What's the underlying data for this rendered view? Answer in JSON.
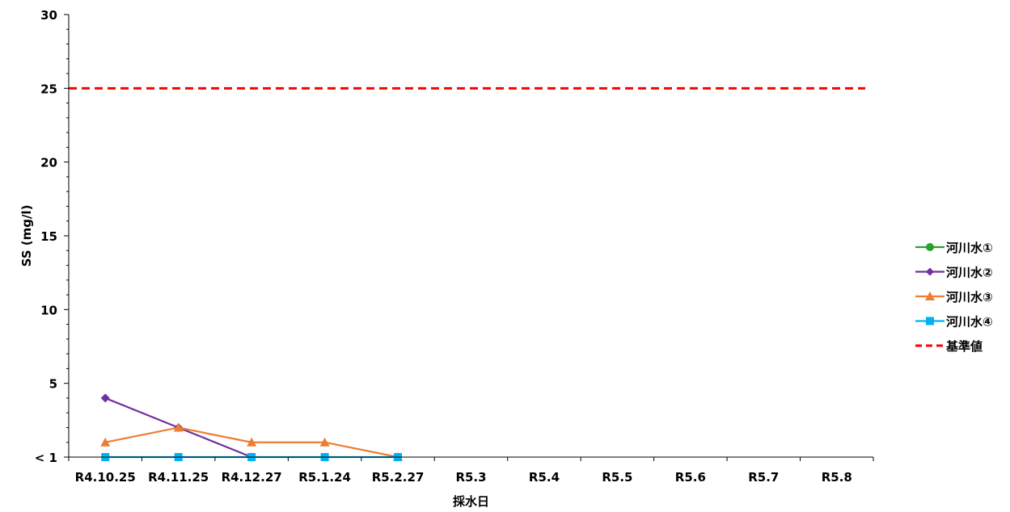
{
  "chart_data": {
    "type": "line",
    "title": "",
    "xlabel": "採水日",
    "ylabel": "SS (mg/l)",
    "categories": [
      "R4.10.25",
      "R4.11.25",
      "R4.12.27",
      "R5.1.24",
      "R5.2.27",
      "R5.3",
      "R5.4",
      "R5.5",
      "R5.6",
      "R5.7",
      "R5.8"
    ],
    "ylim": [
      0,
      30
    ],
    "yticks": [
      {
        "value": 0,
        "label": "< 1"
      },
      {
        "value": 5,
        "label": "5"
      },
      {
        "value": 10,
        "label": "10"
      },
      {
        "value": 15,
        "label": "15"
      },
      {
        "value": 20,
        "label": "20"
      },
      {
        "value": 25,
        "label": "25"
      },
      {
        "value": 30,
        "label": "30"
      }
    ],
    "grid": false,
    "legend_position": "right",
    "series": [
      {
        "name": "河川水①",
        "color": "#2ca02c",
        "marker": "circle",
        "values": [
          null,
          null,
          null,
          null,
          null,
          null,
          null,
          null,
          null,
          null,
          null
        ]
      },
      {
        "name": "河川水②",
        "color": "#7030a0",
        "marker": "diamond",
        "values": [
          4,
          2,
          0,
          null,
          null,
          null,
          null,
          null,
          null,
          null,
          null
        ]
      },
      {
        "name": "河川水③",
        "color": "#ed7d31",
        "marker": "triangle",
        "values": [
          1,
          2,
          1,
          1,
          0,
          null,
          null,
          null,
          null,
          null,
          null
        ]
      },
      {
        "name": "河川水④",
        "color": "#00b0f0",
        "marker": "square",
        "values": [
          0,
          0,
          0,
          0,
          0,
          null,
          null,
          null,
          null,
          null,
          null
        ]
      }
    ],
    "reference_line": {
      "name": "基準値",
      "value": 25,
      "color": "#ff0000",
      "style": "dashed"
    }
  }
}
